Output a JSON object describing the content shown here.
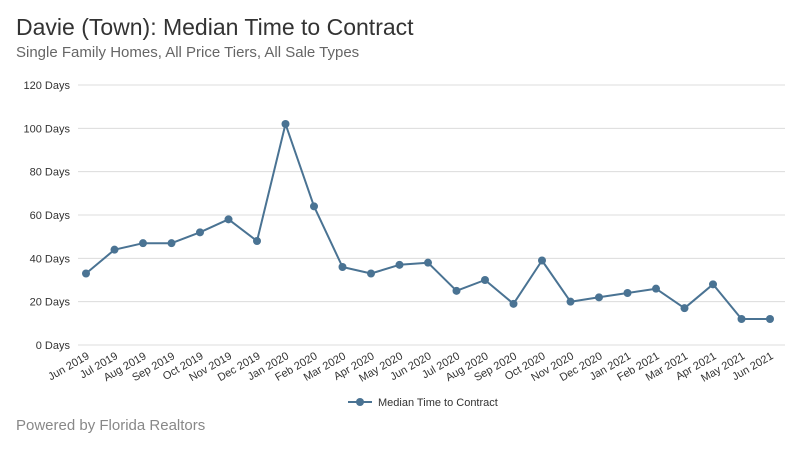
{
  "header": {
    "title": "Davie (Town): Median Time to Contract",
    "subtitle": "Single Family Homes, All Price Tiers, All Sale Types"
  },
  "footer": {
    "text": "Powered by Florida Realtors"
  },
  "colors": {
    "series": "#4a7393",
    "grid": "#dcdcdc",
    "text": "#333333"
  },
  "chart_data": {
    "type": "line",
    "title": "Davie (Town): Median Time to Contract",
    "subtitle": "Single Family Homes, All Price Tiers, All Sale Types",
    "xlabel": "",
    "ylabel": "",
    "ylim": [
      0,
      120
    ],
    "y_ticks": [
      {
        "value": 0,
        "label": "0 Days"
      },
      {
        "value": 20,
        "label": "20 Days"
      },
      {
        "value": 40,
        "label": "40 Days"
      },
      {
        "value": 60,
        "label": "60 Days"
      },
      {
        "value": 80,
        "label": "80 Days"
      },
      {
        "value": 100,
        "label": "100 Days"
      },
      {
        "value": 120,
        "label": "120 Days"
      }
    ],
    "grid": true,
    "legend_position": "bottom",
    "categories": [
      "Jun 2019",
      "Jul 2019",
      "Aug 2019",
      "Sep 2019",
      "Oct 2019",
      "Nov 2019",
      "Dec 2019",
      "Jan 2020",
      "Feb 2020",
      "Mar 2020",
      "Apr 2020",
      "May 2020",
      "Jun 2020",
      "Jul 2020",
      "Aug 2020",
      "Sep 2020",
      "Oct 2020",
      "Nov 2020",
      "Dec 2020",
      "Jan 2021",
      "Feb 2021",
      "Mar 2021",
      "Apr 2021",
      "May 2021",
      "Jun 2021"
    ],
    "series": [
      {
        "name": "Median Time to Contract",
        "values": [
          33,
          44,
          47,
          47,
          52,
          58,
          48,
          102,
          64,
          36,
          33,
          37,
          38,
          25,
          30,
          19,
          39,
          20,
          22,
          24,
          26,
          17,
          28,
          12,
          12
        ]
      }
    ]
  }
}
